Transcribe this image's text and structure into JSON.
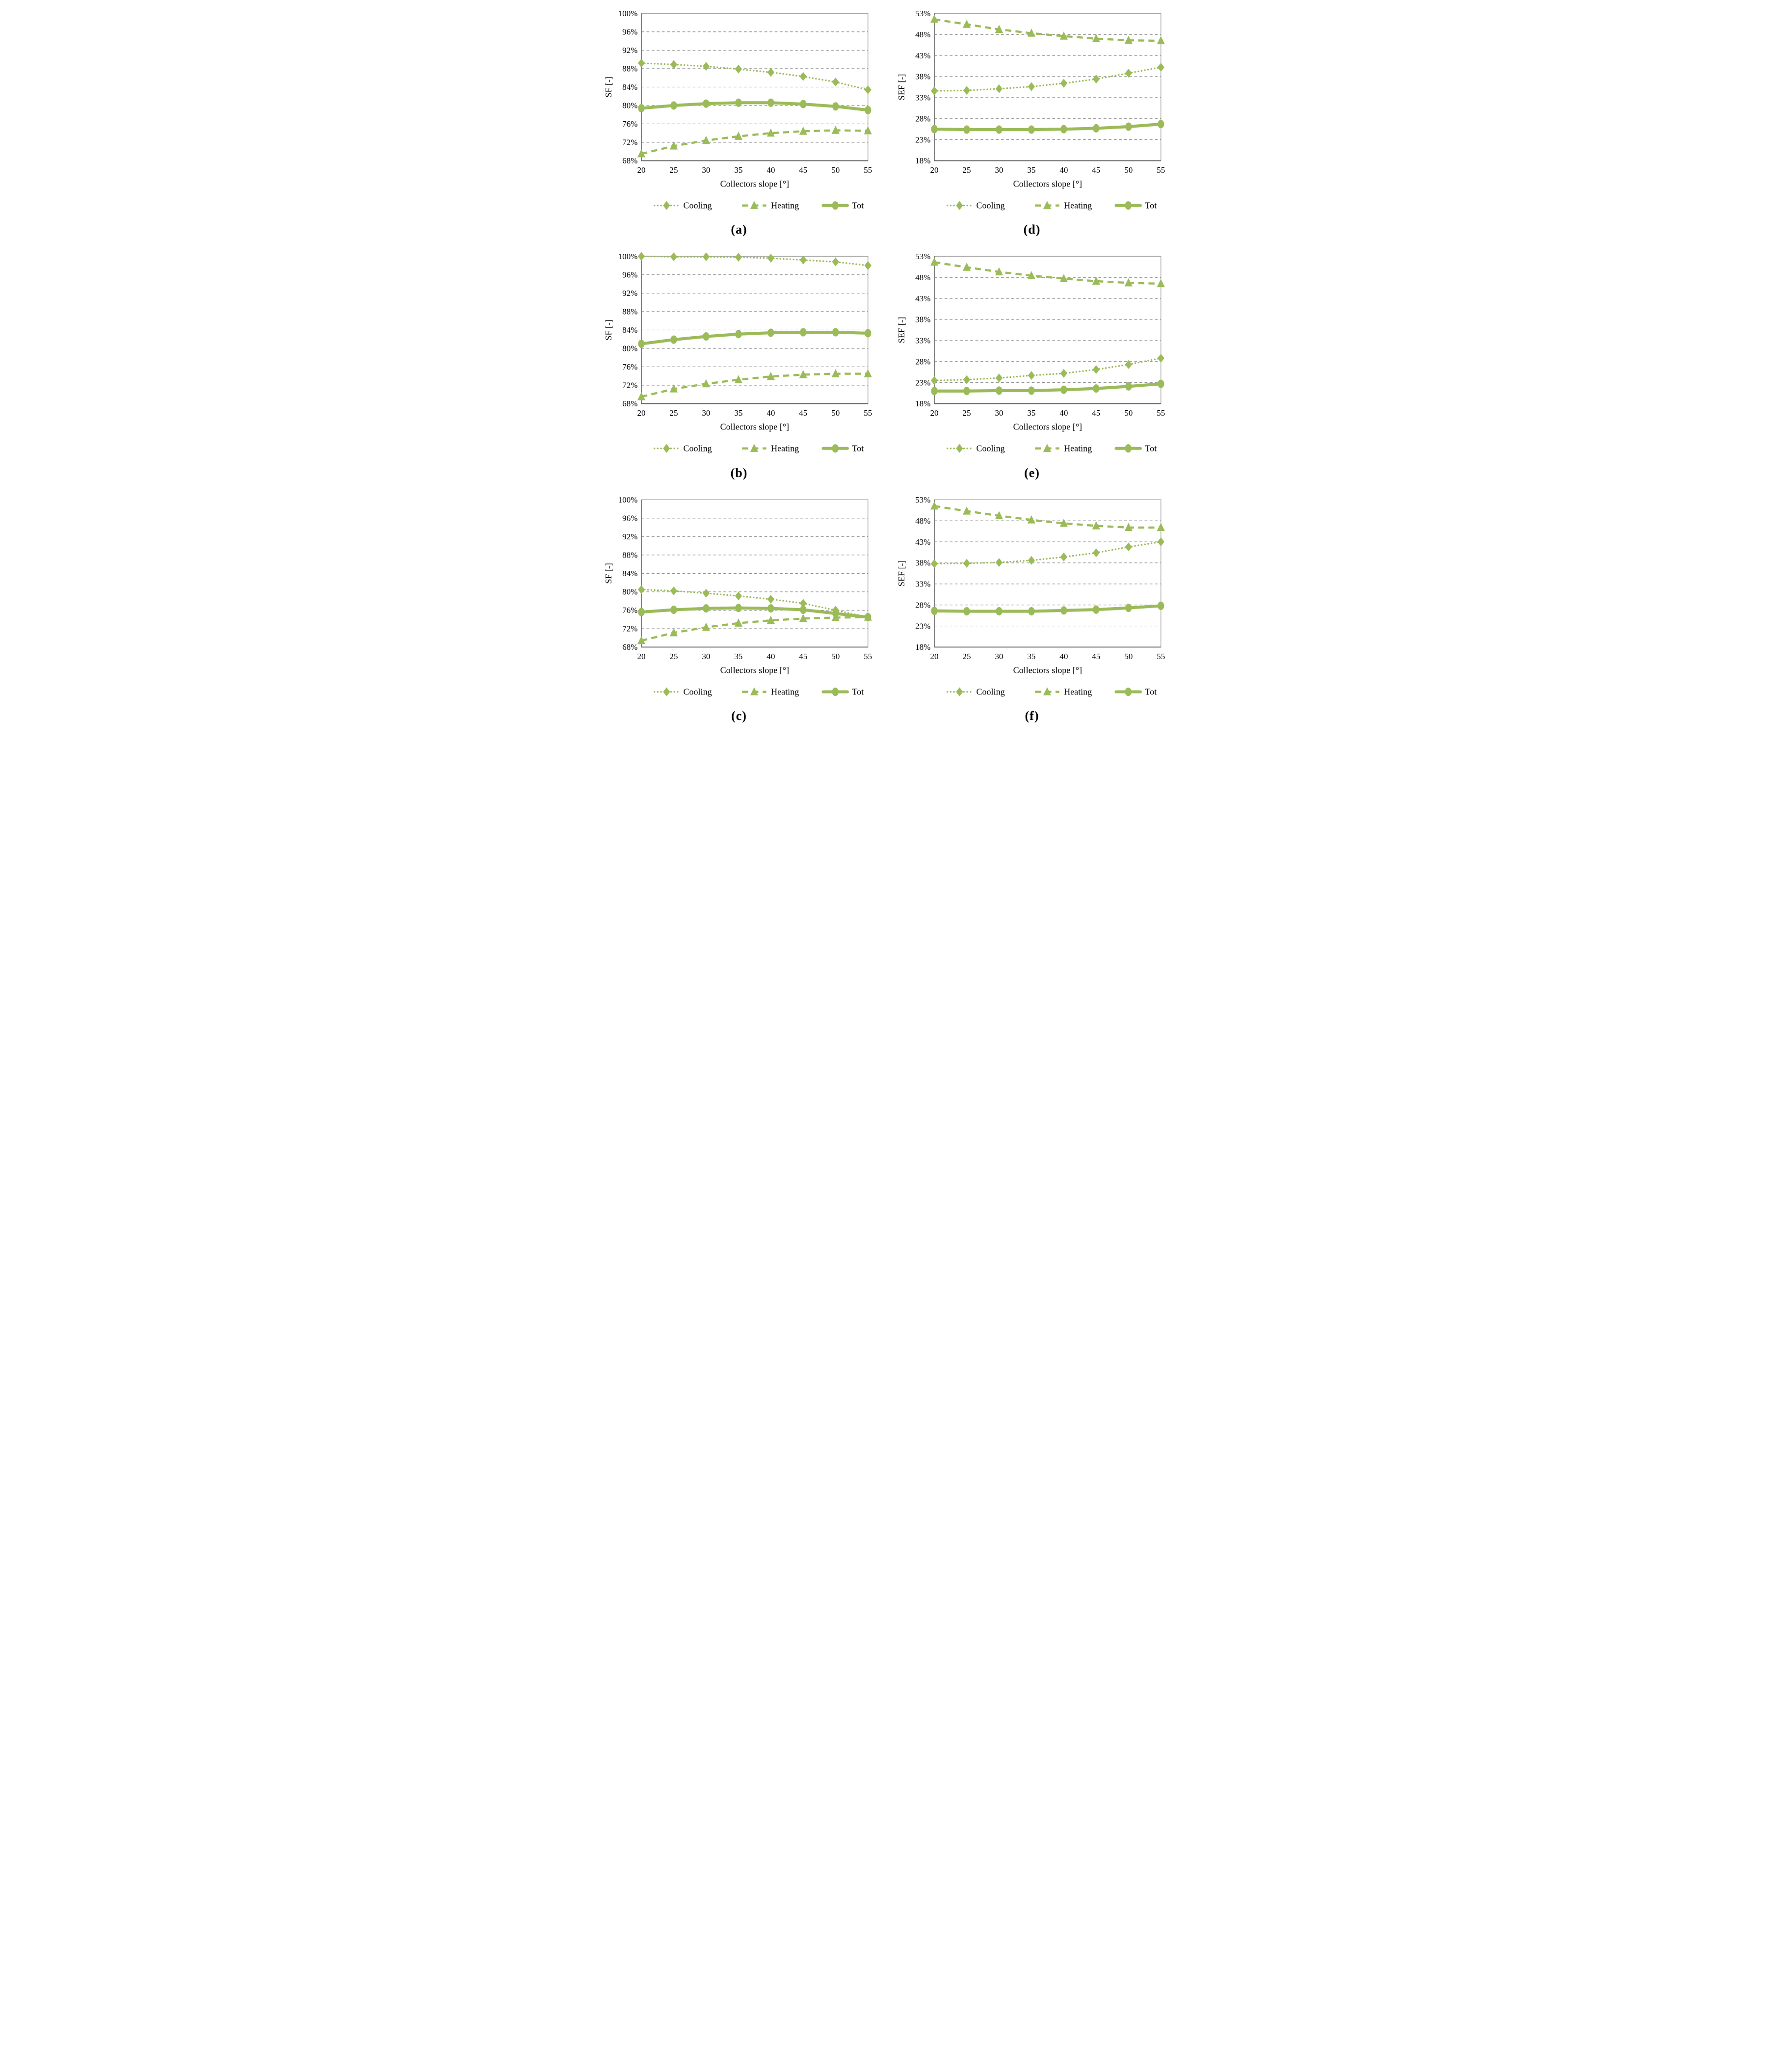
{
  "styles": {
    "series_color": "#9BBB59",
    "grid_color": "#7f7f7f",
    "border_color": "#a6a6a6",
    "axis_color": "#595959",
    "text_color": "#000000"
  },
  "figure": {
    "x_axis_label": "Collectors slope [°]",
    "legend_labels": [
      "Cooling",
      "Heating",
      "Tot"
    ]
  },
  "chart_data": [
    {
      "type": "line",
      "panel": "a",
      "title": "(a)",
      "xlabel": "Collectors slope [°]",
      "ylabel": "SF [-]",
      "x": [
        20,
        25,
        30,
        35,
        40,
        45,
        50,
        55
      ],
      "ylim": [
        68,
        100
      ],
      "yticks": [
        68,
        72,
        76,
        80,
        84,
        88,
        92,
        96,
        100
      ],
      "ytick_suffix": "%",
      "grid": true,
      "legend_position": "bottom",
      "series": [
        {
          "name": "Cooling",
          "marker": "diamond",
          "line": "dotted",
          "values": [
            89.2,
            88.9,
            88.5,
            87.9,
            87.2,
            86.3,
            85.1,
            83.4
          ]
        },
        {
          "name": "Heating",
          "marker": "triangle",
          "line": "dashed",
          "values": [
            69.5,
            71.2,
            72.4,
            73.3,
            74.0,
            74.4,
            74.6,
            74.5
          ]
        },
        {
          "name": "Tot",
          "marker": "circle",
          "line": "solid",
          "values": [
            79.4,
            80.0,
            80.4,
            80.6,
            80.6,
            80.3,
            79.8,
            79.0
          ]
        }
      ]
    },
    {
      "type": "line",
      "panel": "d",
      "title": "(d)",
      "xlabel": "Collectors slope [°]",
      "ylabel": "SEF [-]",
      "x": [
        20,
        25,
        30,
        35,
        40,
        45,
        50,
        55
      ],
      "ylim": [
        18,
        53
      ],
      "yticks": [
        18,
        23,
        28,
        33,
        38,
        43,
        48,
        53
      ],
      "ytick_suffix": "%",
      "grid": true,
      "legend_position": "bottom",
      "series": [
        {
          "name": "Cooling",
          "marker": "diamond",
          "line": "dotted",
          "values": [
            34.6,
            34.7,
            35.1,
            35.6,
            36.4,
            37.4,
            38.8,
            40.2
          ]
        },
        {
          "name": "Heating",
          "marker": "triangle",
          "line": "dashed",
          "values": [
            51.6,
            50.4,
            49.2,
            48.3,
            47.6,
            47.0,
            46.6,
            46.5
          ]
        },
        {
          "name": "Tot",
          "marker": "circle",
          "line": "solid",
          "values": [
            25.5,
            25.4,
            25.4,
            25.4,
            25.5,
            25.7,
            26.1,
            26.7
          ]
        }
      ]
    },
    {
      "type": "line",
      "panel": "b",
      "title": "(b)",
      "xlabel": "Collectors slope [°]",
      "ylabel": "SF [-]",
      "x": [
        20,
        25,
        30,
        35,
        40,
        45,
        50,
        55
      ],
      "ylim": [
        68,
        100
      ],
      "yticks": [
        68,
        72,
        76,
        80,
        84,
        88,
        92,
        96,
        100
      ],
      "ytick_suffix": "%",
      "grid": true,
      "legend_position": "bottom",
      "series": [
        {
          "name": "Cooling",
          "marker": "diamond",
          "line": "dotted",
          "values": [
            100.0,
            99.9,
            99.9,
            99.8,
            99.6,
            99.2,
            98.8,
            98.0
          ]
        },
        {
          "name": "Heating",
          "marker": "triangle",
          "line": "dashed",
          "values": [
            69.5,
            71.2,
            72.3,
            73.2,
            73.9,
            74.3,
            74.5,
            74.5
          ]
        },
        {
          "name": "Tot",
          "marker": "circle",
          "line": "solid",
          "values": [
            81.0,
            81.9,
            82.6,
            83.1,
            83.4,
            83.5,
            83.5,
            83.3
          ]
        }
      ]
    },
    {
      "type": "line",
      "panel": "e",
      "title": "(e)",
      "xlabel": "Collectors slope [°]",
      "ylabel": "SEF [-]",
      "x": [
        20,
        25,
        30,
        35,
        40,
        45,
        50,
        55
      ],
      "ylim": [
        18,
        53
      ],
      "yticks": [
        18,
        23,
        28,
        33,
        38,
        43,
        48,
        53
      ],
      "ytick_suffix": "%",
      "grid": true,
      "legend_position": "bottom",
      "series": [
        {
          "name": "Cooling",
          "marker": "diamond",
          "line": "dotted",
          "values": [
            23.5,
            23.7,
            24.1,
            24.7,
            25.2,
            26.1,
            27.3,
            28.8
          ]
        },
        {
          "name": "Heating",
          "marker": "triangle",
          "line": "dashed",
          "values": [
            51.6,
            50.4,
            49.3,
            48.4,
            47.7,
            47.1,
            46.7,
            46.5
          ]
        },
        {
          "name": "Tot",
          "marker": "circle",
          "line": "solid",
          "values": [
            21.0,
            21.0,
            21.1,
            21.1,
            21.3,
            21.6,
            22.1,
            22.7
          ]
        }
      ]
    },
    {
      "type": "line",
      "panel": "c",
      "title": "(c)",
      "xlabel": "Collectors slope [°]",
      "ylabel": "SF [-]",
      "x": [
        20,
        25,
        30,
        35,
        40,
        45,
        50,
        55
      ],
      "ylim": [
        68,
        100
      ],
      "yticks": [
        68,
        72,
        76,
        80,
        84,
        88,
        92,
        96,
        100
      ],
      "ytick_suffix": "%",
      "grid": true,
      "legend_position": "bottom",
      "series": [
        {
          "name": "Cooling",
          "marker": "diamond",
          "line": "dotted",
          "values": [
            80.5,
            80.2,
            79.7,
            79.1,
            78.4,
            77.5,
            76.0,
            74.5
          ]
        },
        {
          "name": "Heating",
          "marker": "triangle",
          "line": "dashed",
          "values": [
            69.4,
            71.1,
            72.3,
            73.2,
            73.8,
            74.2,
            74.4,
            74.5
          ]
        },
        {
          "name": "Tot",
          "marker": "circle",
          "line": "solid",
          "values": [
            75.6,
            76.1,
            76.4,
            76.5,
            76.4,
            76.1,
            75.3,
            74.5
          ]
        }
      ]
    },
    {
      "type": "line",
      "panel": "f",
      "title": "(f)",
      "xlabel": "Collectors slope [°]",
      "ylabel": "SEF [-]",
      "x": [
        20,
        25,
        30,
        35,
        40,
        45,
        50,
        55
      ],
      "ylim": [
        18,
        53
      ],
      "yticks": [
        18,
        23,
        28,
        33,
        38,
        43,
        48,
        53
      ],
      "ytick_suffix": "%",
      "grid": true,
      "legend_position": "bottom",
      "series": [
        {
          "name": "Cooling",
          "marker": "diamond",
          "line": "dotted",
          "values": [
            37.8,
            37.9,
            38.1,
            38.6,
            39.4,
            40.4,
            41.8,
            43.0
          ]
        },
        {
          "name": "Heating",
          "marker": "triangle",
          "line": "dashed",
          "values": [
            51.5,
            50.3,
            49.2,
            48.2,
            47.4,
            46.8,
            46.4,
            46.4
          ]
        },
        {
          "name": "Tot",
          "marker": "circle",
          "line": "solid",
          "values": [
            26.6,
            26.5,
            26.5,
            26.5,
            26.7,
            26.9,
            27.3,
            27.8
          ]
        }
      ]
    }
  ]
}
